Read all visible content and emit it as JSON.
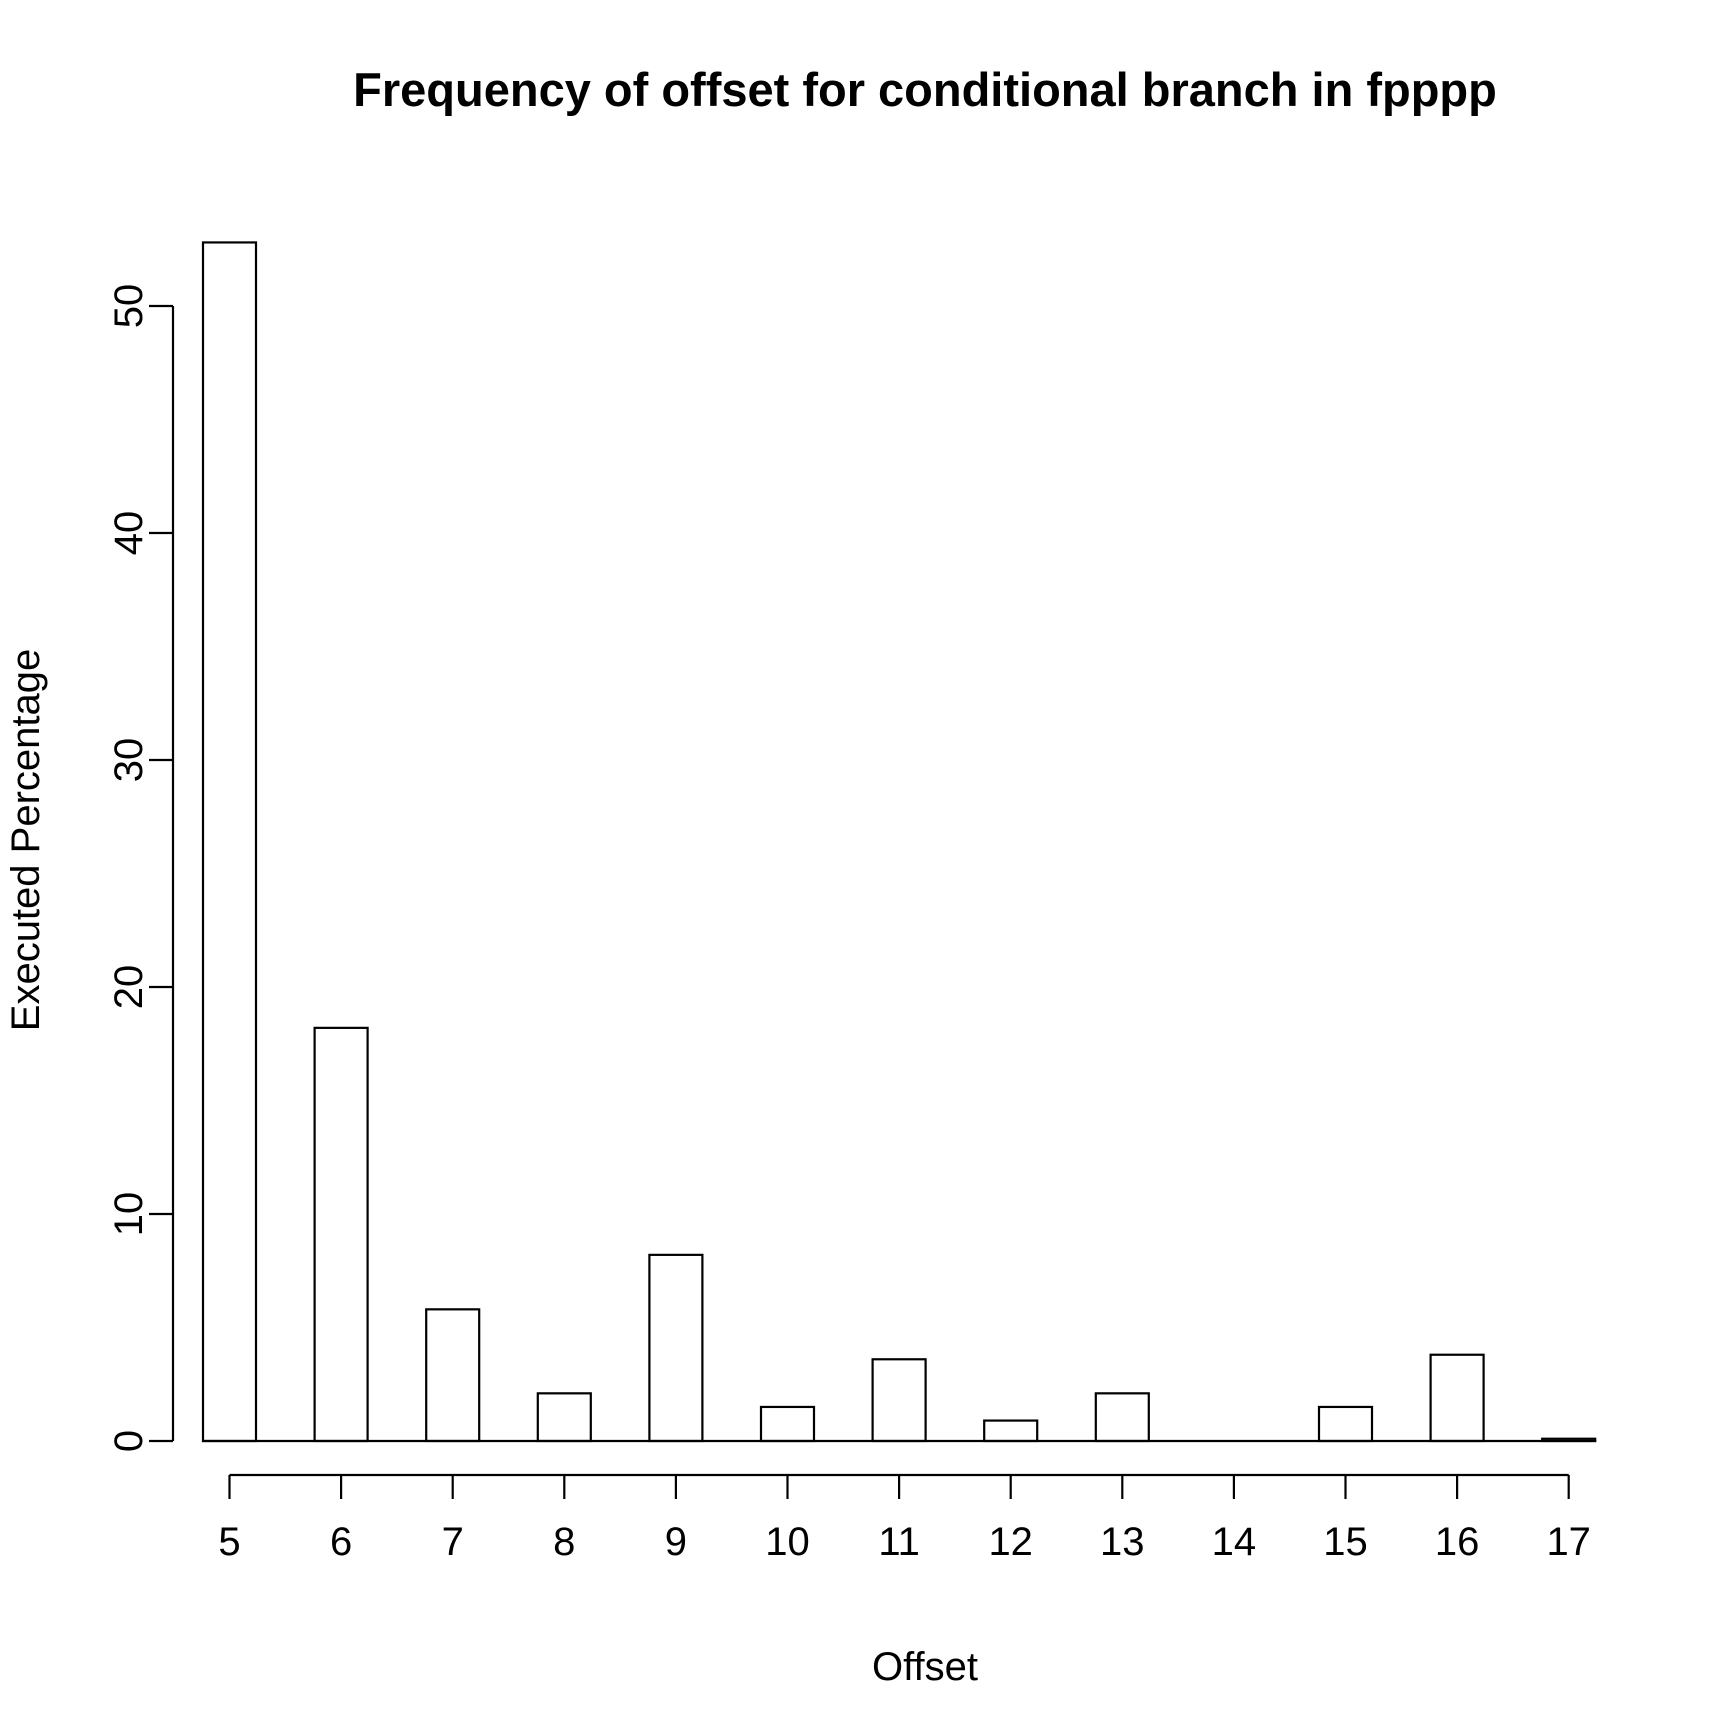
{
  "chart_data": {
    "type": "bar",
    "title": "Frequency of offset for conditional branch in fpppp",
    "xlabel": "Offset",
    "ylabel": "Executed Percentage",
    "categories": [
      "5",
      "6",
      "7",
      "8",
      "9",
      "10",
      "11",
      "12",
      "13",
      "14",
      "15",
      "16",
      "17"
    ],
    "values": [
      52.8,
      18.2,
      5.8,
      2.1,
      8.2,
      1.5,
      3.6,
      0.9,
      2.1,
      0.0,
      1.5,
      3.8,
      0.1
    ],
    "ylim": [
      0,
      52.8
    ],
    "yticks": [
      0,
      10,
      20,
      30,
      40,
      50
    ],
    "grid": false,
    "legend": false
  }
}
